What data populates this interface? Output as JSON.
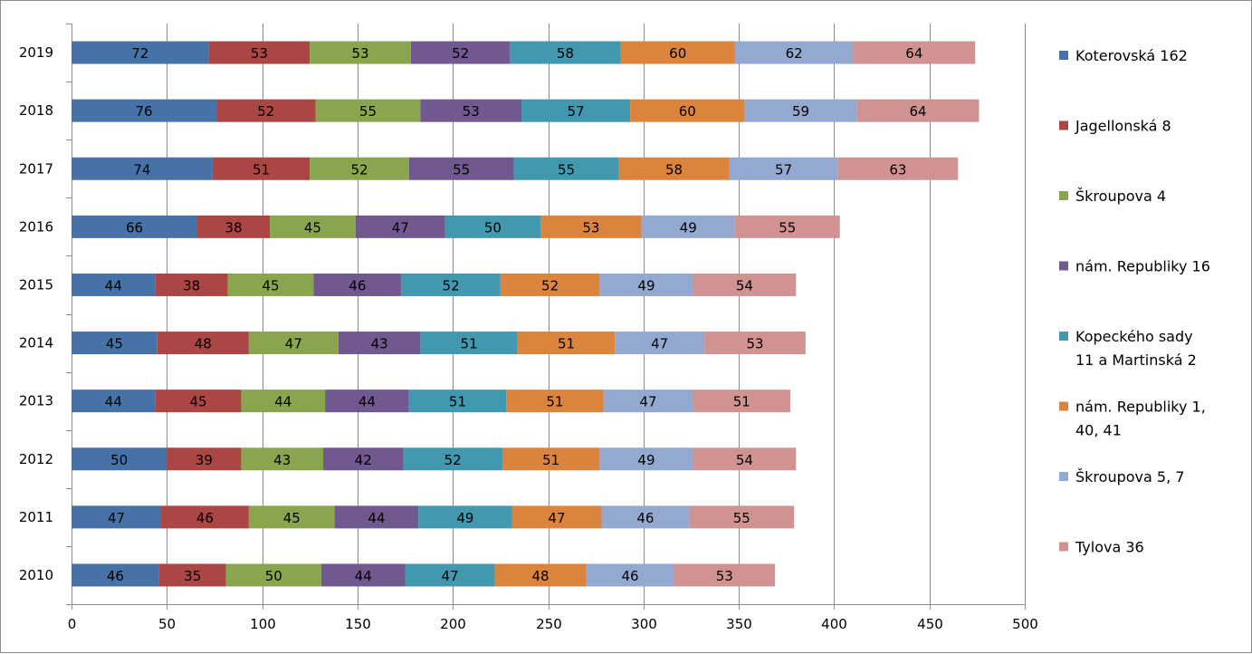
{
  "chart_data": {
    "type": "bar",
    "orientation": "horizontal",
    "stacked": true,
    "title": "",
    "xlabel": "",
    "ylabel": "",
    "xlim": [
      0,
      500
    ],
    "x_ticks": [
      0,
      50,
      100,
      150,
      200,
      250,
      300,
      350,
      400,
      450,
      500
    ],
    "grid": "vertical",
    "legend_position": "right",
    "categories": [
      "2019",
      "2018",
      "2017",
      "2016",
      "2015",
      "2014",
      "2013",
      "2012",
      "2011",
      "2010"
    ],
    "series": [
      {
        "name": "Koterovská 162",
        "color": "#4672A8",
        "values": [
          72,
          76,
          74,
          66,
          44,
          45,
          44,
          50,
          47,
          46
        ]
      },
      {
        "name": "Jagellonská 8",
        "color": "#AA4643",
        "values": [
          53,
          52,
          51,
          38,
          38,
          48,
          45,
          39,
          46,
          35
        ]
      },
      {
        "name": "Škroupova 4",
        "color": "#89A54E",
        "values": [
          53,
          55,
          52,
          45,
          45,
          47,
          44,
          43,
          45,
          50
        ]
      },
      {
        "name": "nám. Republiky 16",
        "color": "#71588F",
        "values": [
          52,
          53,
          55,
          47,
          46,
          43,
          44,
          42,
          44,
          44
        ]
      },
      {
        "name": "Kopeckého sady 11 a Martinská 2",
        "legend_lines": [
          "Kopeckého sady",
          "11 a Martinská 2"
        ],
        "color": "#4198AF",
        "values": [
          58,
          57,
          55,
          50,
          52,
          51,
          51,
          52,
          49,
          47
        ]
      },
      {
        "name": "nám. Republiky 1, 40, 41",
        "legend_lines": [
          "nám. Republiky 1,",
          "40, 41"
        ],
        "color": "#DB843D",
        "values": [
          60,
          60,
          58,
          53,
          52,
          51,
          51,
          51,
          47,
          48
        ]
      },
      {
        "name": "Škroupova 5, 7",
        "color": "#93A9CF",
        "values": [
          62,
          59,
          57,
          49,
          49,
          47,
          47,
          49,
          46,
          46
        ]
      },
      {
        "name": "Tylova 36",
        "color": "#D19392",
        "values": [
          64,
          64,
          63,
          55,
          54,
          53,
          51,
          54,
          55,
          53
        ]
      }
    ]
  }
}
